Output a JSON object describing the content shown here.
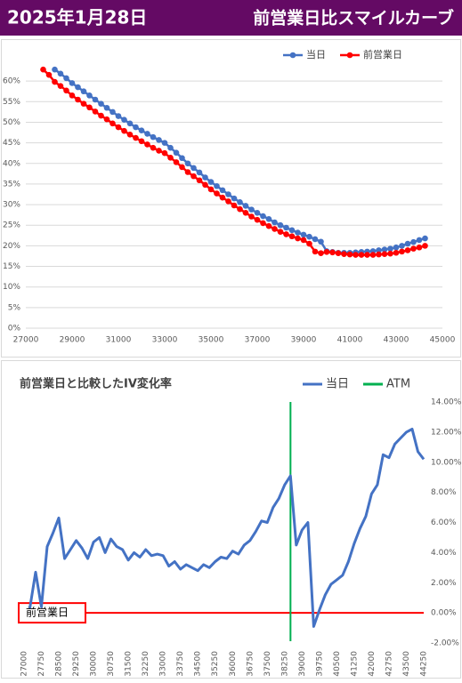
{
  "header": {
    "date": "2025年1月28日",
    "title": "前営業日比スマイルカーブ"
  },
  "chart_data": [
    {
      "type": "line",
      "legend": "top-right",
      "grid": true,
      "markers": true,
      "x": [
        27750,
        28000,
        28250,
        28500,
        28750,
        29000,
        29250,
        29500,
        29750,
        30000,
        30250,
        30500,
        30750,
        31000,
        31250,
        31500,
        31750,
        32000,
        32250,
        32500,
        32750,
        33000,
        33250,
        33500,
        33750,
        34000,
        34250,
        34500,
        34750,
        35000,
        35250,
        35500,
        35750,
        36000,
        36250,
        36500,
        36750,
        37000,
        37250,
        37500,
        37750,
        38000,
        38250,
        38500,
        38750,
        39000,
        39250,
        39500,
        39750,
        40000,
        40250,
        40500,
        40750,
        41000,
        41250,
        41500,
        41750,
        42000,
        42250,
        42500,
        42750,
        43000,
        43250,
        43500,
        43750,
        44000,
        44250
      ],
      "series": [
        {
          "name": "当日",
          "color": "#4472c4",
          "values": [
            null,
            null,
            62.8,
            61.8,
            60.7,
            59.5,
            58.5,
            57.5,
            56.5,
            55.5,
            54.5,
            53.5,
            52.5,
            51.5,
            50.6,
            49.7,
            48.8,
            48.0,
            47.2,
            46.4,
            45.7,
            45.0,
            43.8,
            42.6,
            41.3,
            40.0,
            38.9,
            37.8,
            36.6,
            35.5,
            34.5,
            33.5,
            32.5,
            31.5,
            30.6,
            29.7,
            28.8,
            28.0,
            27.2,
            26.5,
            25.7,
            25.0,
            24.4,
            23.8,
            23.2,
            22.7,
            22.2,
            21.6,
            21.0,
            18.7,
            18.5,
            18.3,
            18.3,
            18.3,
            18.4,
            18.5,
            18.6,
            18.7,
            18.9,
            19.1,
            19.3,
            19.6,
            20.0,
            20.5,
            20.9,
            21.4,
            21.8
          ]
        },
        {
          "name": "前営業日",
          "color": "#ff0000",
          "values": [
            62.8,
            61.5,
            59.8,
            58.8,
            57.7,
            56.5,
            55.5,
            54.5,
            53.6,
            52.6,
            51.6,
            50.7,
            49.7,
            48.8,
            47.9,
            47.0,
            46.2,
            45.4,
            44.6,
            43.8,
            43.1,
            42.5,
            41.4,
            40.3,
            39.1,
            37.9,
            36.9,
            35.9,
            34.8,
            33.7,
            32.7,
            31.7,
            30.8,
            29.8,
            28.9,
            28.0,
            27.1,
            26.3,
            25.5,
            24.8,
            24.1,
            23.4,
            22.8,
            22.3,
            21.8,
            21.4,
            20.5,
            18.6,
            18.2,
            18.5,
            18.4,
            18.2,
            18.0,
            17.9,
            17.8,
            17.8,
            17.8,
            17.8,
            17.9,
            18.0,
            18.1,
            18.3,
            18.6,
            18.9,
            19.3,
            19.6,
            20.0
          ]
        }
      ],
      "xlim": [
        27000,
        45000
      ],
      "xticks": [
        27000,
        29000,
        31000,
        33000,
        35000,
        37000,
        39000,
        41000,
        43000,
        45000
      ],
      "ylim": [
        0,
        65
      ],
      "yticks": [
        {
          "value": 0,
          "label": "0%"
        },
        {
          "value": 5,
          "label": "5%"
        },
        {
          "value": 10,
          "label": "10%"
        },
        {
          "value": 15,
          "label": "15%"
        },
        {
          "value": 20,
          "label": "20%"
        },
        {
          "value": 25,
          "label": "25%"
        },
        {
          "value": 30,
          "label": "30%"
        },
        {
          "value": 35,
          "label": "35%"
        },
        {
          "value": 40,
          "label": "40%"
        },
        {
          "value": 45,
          "label": "45%"
        },
        {
          "value": 50,
          "label": "50%"
        },
        {
          "value": 55,
          "label": "55%"
        },
        {
          "value": 60,
          "label": "60%"
        }
      ]
    },
    {
      "type": "line",
      "title": "前営業日と比較したIV変化率",
      "legend": "top-right",
      "grid": false,
      "markers": false,
      "y_axis_side": "right",
      "x_label_rotation": -90,
      "x": [
        27000,
        27250,
        27500,
        27750,
        28000,
        28250,
        28500,
        28750,
        29000,
        29250,
        29500,
        29750,
        30000,
        30250,
        30500,
        30750,
        31000,
        31250,
        31500,
        31750,
        32000,
        32250,
        32500,
        32750,
        33000,
        33250,
        33500,
        33750,
        34000,
        34250,
        34500,
        34750,
        35000,
        35250,
        35500,
        35750,
        36000,
        36250,
        36500,
        36750,
        37000,
        37250,
        37500,
        37750,
        38000,
        38250,
        38500,
        38750,
        39000,
        39250,
        39500,
        39750,
        40000,
        40250,
        40500,
        40750,
        41000,
        41250,
        41500,
        41750,
        42000,
        42250,
        42500,
        42750,
        43000,
        43250,
        43500,
        43750,
        44000,
        44250
      ],
      "series": [
        {
          "name": "当日",
          "color": "#4472c4",
          "values": [
            null,
            0.3,
            2.7,
            0.4,
            4.4,
            5.3,
            6.3,
            3.6,
            4.2,
            4.8,
            4.3,
            3.6,
            4.7,
            5.0,
            4.0,
            4.9,
            4.4,
            4.2,
            3.5,
            4.0,
            3.7,
            4.2,
            3.8,
            3.9,
            3.8,
            3.1,
            3.4,
            2.9,
            3.2,
            3.0,
            2.8,
            3.2,
            3.0,
            3.4,
            3.7,
            3.6,
            4.1,
            3.9,
            4.5,
            4.8,
            5.4,
            6.1,
            6.0,
            7.0,
            7.6,
            8.5,
            9.1,
            4.5,
            5.5,
            6.0,
            -0.9,
            0.2,
            1.2,
            1.9,
            2.2,
            2.5,
            3.4,
            4.6,
            5.6,
            6.4,
            7.9,
            8.5,
            10.5,
            10.3,
            11.2,
            11.6,
            12.0,
            12.2,
            10.7,
            10.2
          ]
        }
      ],
      "vlines": [
        {
          "name": "ATM",
          "color": "#00b050",
          "value": 38500
        }
      ],
      "hlines": [
        {
          "label": "前営業日",
          "color": "#ff0000",
          "value": 0
        }
      ],
      "xlim": [
        27000,
        44250
      ],
      "xticks": [
        27000,
        27750,
        28500,
        29250,
        30000,
        30750,
        31500,
        32250,
        33000,
        33750,
        34500,
        35250,
        36000,
        36750,
        37500,
        38250,
        39000,
        39750,
        40500,
        41250,
        42000,
        42750,
        43500,
        44250
      ],
      "ylim": [
        -2,
        14
      ],
      "yticks": [
        {
          "value": -2,
          "label": "-2.00%"
        },
        {
          "value": 0,
          "label": "0.00%"
        },
        {
          "value": 2,
          "label": "2.00%"
        },
        {
          "value": 4,
          "label": "4.00%"
        },
        {
          "value": 6,
          "label": "6.00%"
        },
        {
          "value": 8,
          "label": "8.00%"
        },
        {
          "value": 10,
          "label": "10.00%"
        },
        {
          "value": 12,
          "label": "12.00%"
        },
        {
          "value": 14,
          "label": "14.00%"
        }
      ]
    }
  ]
}
